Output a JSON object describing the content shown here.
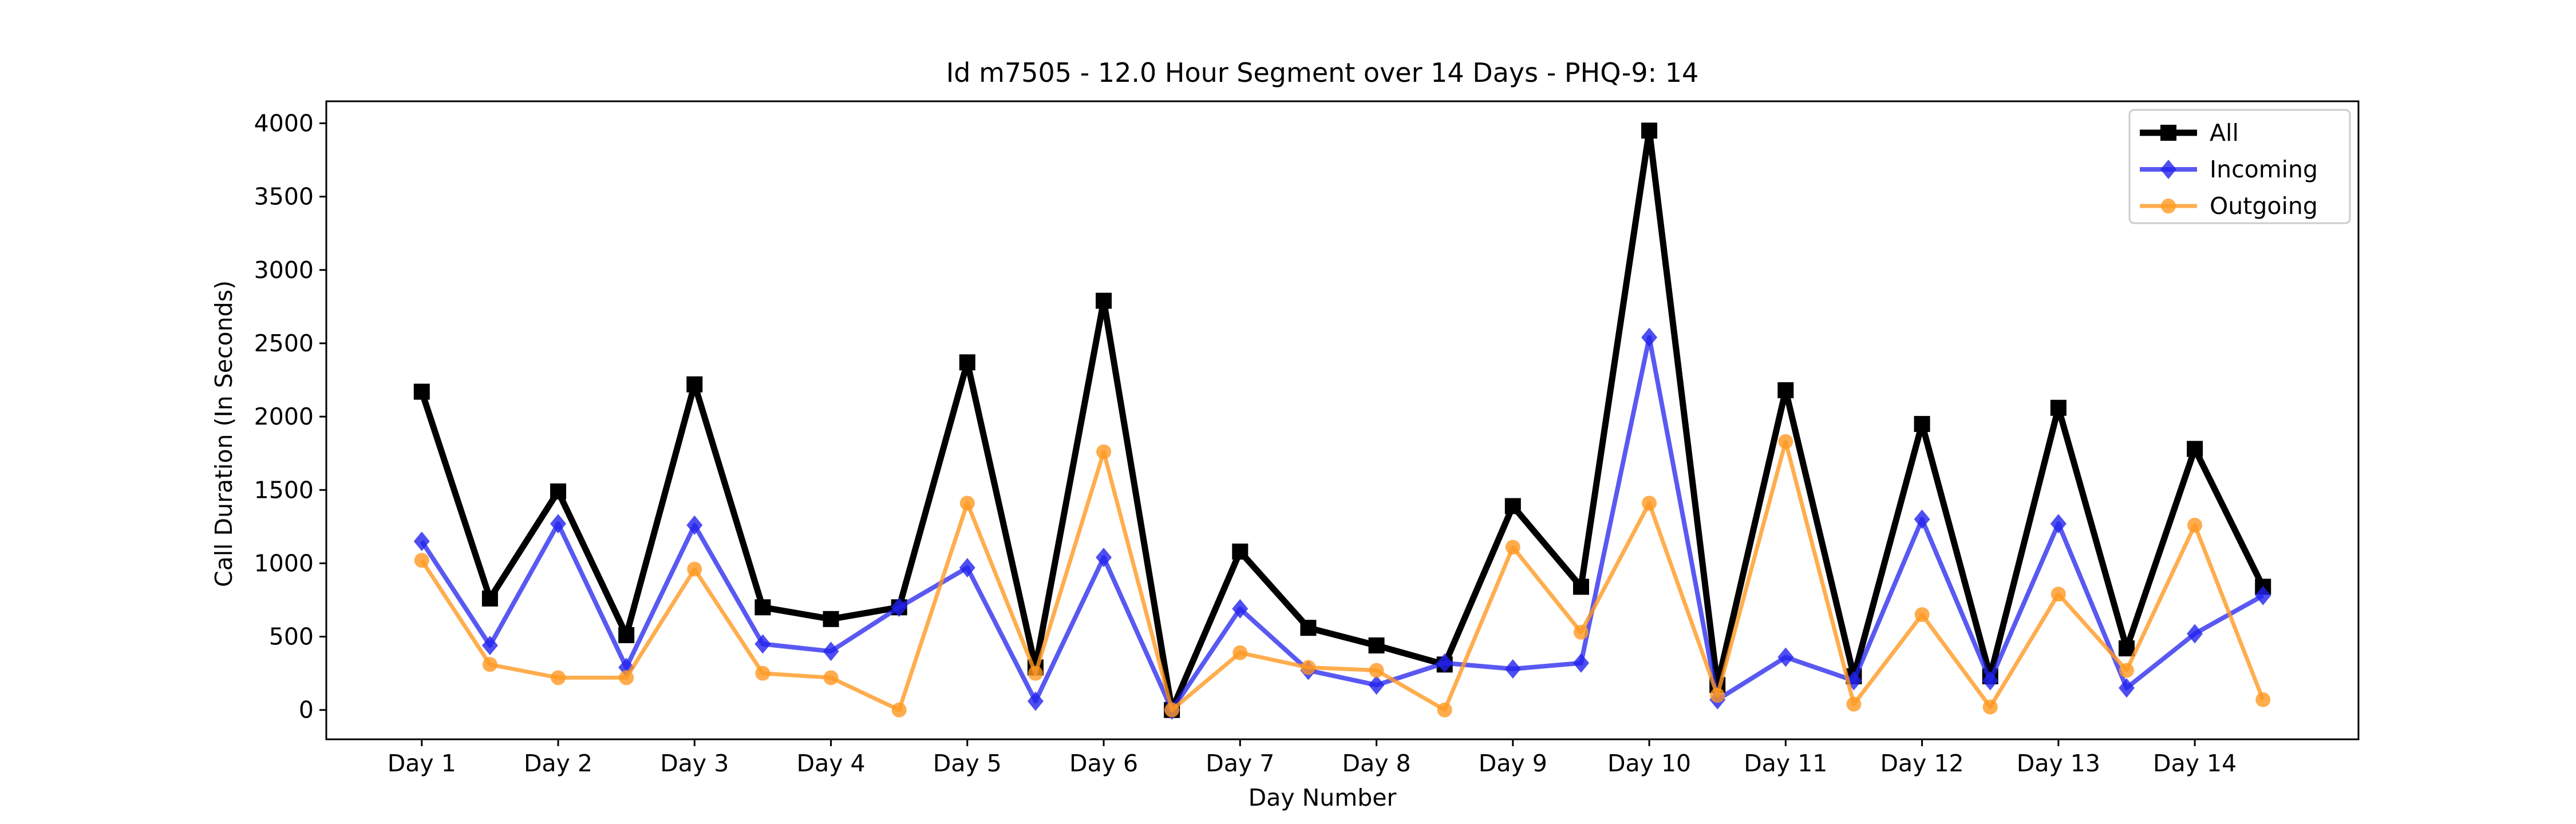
{
  "chart_data": {
    "type": "line",
    "title": "Id m7505 - 12.0 Hour Segment over 14 Days - PHQ-9: 14",
    "xlabel": "Day Number",
    "ylabel": "Call Duration (In Seconds)",
    "xlim": [
      0.3,
      15.2
    ],
    "ylim": [
      -200,
      4150
    ],
    "yticks": [
      0,
      500,
      1000,
      1500,
      2000,
      2500,
      3000,
      3500,
      4000
    ],
    "xticks": [
      1,
      2,
      3,
      4,
      5,
      6,
      7,
      8,
      9,
      10,
      11,
      12,
      13,
      14
    ],
    "xtick_labels": [
      "Day 1",
      "Day 2",
      "Day 3",
      "Day 4",
      "Day 5",
      "Day 6",
      "Day 7",
      "Day 8",
      "Day 9",
      "Day 10",
      "Day 11",
      "Day 12",
      "Day 13",
      "Day 14"
    ],
    "x": [
      1,
      1.5,
      2,
      2.5,
      3,
      3.5,
      4,
      4.5,
      5,
      5.5,
      6,
      6.5,
      7,
      7.5,
      8,
      8.5,
      9,
      9.5,
      10,
      10.5,
      11,
      11.5,
      12,
      12.5,
      13,
      13.5,
      14,
      14.5
    ],
    "legend_position": "top-right",
    "grid": false,
    "series": [
      {
        "name": "All",
        "color": "#000000",
        "marker": "square",
        "values": [
          2170,
          760,
          1490,
          510,
          2220,
          700,
          620,
          700,
          2370,
          290,
          2790,
          0,
          1080,
          560,
          440,
          310,
          1390,
          840,
          3950,
          170,
          2180,
          230,
          1950,
          230,
          2060,
          420,
          1780,
          840
        ]
      },
      {
        "name": "Incoming",
        "color": "#2222ee",
        "marker": "diamond",
        "values": [
          1150,
          440,
          1270,
          290,
          1260,
          450,
          400,
          700,
          970,
          60,
          1040,
          0,
          690,
          270,
          170,
          320,
          280,
          320,
          2540,
          70,
          360,
          200,
          1300,
          200,
          1270,
          150,
          520,
          780
        ]
      },
      {
        "name": "Outgoing",
        "color": "#ff9922",
        "marker": "circle",
        "values": [
          1020,
          310,
          220,
          220,
          960,
          250,
          220,
          0,
          1410,
          250,
          1760,
          0,
          390,
          290,
          270,
          0,
          1110,
          530,
          1410,
          100,
          1830,
          40,
          650,
          20,
          790,
          270,
          1260,
          70
        ]
      }
    ]
  }
}
